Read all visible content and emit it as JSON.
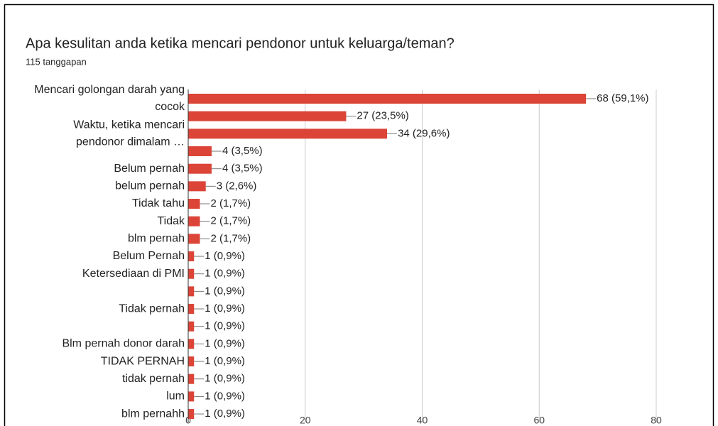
{
  "chart_data": {
    "type": "bar",
    "orientation": "horizontal",
    "title": "Apa kesulitan anda ketika mencari pendonor untuk keluarga/teman?",
    "subtitle": "115 tanggapan",
    "categories": [
      "Mencari golongan darah yang cocok",
      null,
      "Waktu, ketika mencari pendonor dimalam …",
      null,
      "Belum pernah",
      "belum pernah",
      "Tidak tahu",
      "Tidak",
      "blm pernah",
      "Belum Pernah",
      "Ketersediaan di PMI",
      null,
      "Tidak pernah",
      null,
      "Blm pernah donor darah",
      "TIDAK PERNAH",
      "tidak pernah",
      "lum",
      "blm pernahh"
    ],
    "values": [
      68,
      27,
      34,
      4,
      4,
      3,
      2,
      2,
      2,
      1,
      1,
      1,
      1,
      1,
      1,
      1,
      1,
      1,
      1
    ],
    "value_labels": [
      "68 (59,1%)",
      "27 (23,5%)",
      "34 (29,6%)",
      "4 (3,5%)",
      "4 (3,5%)",
      "3 (2,6%)",
      "2 (1,7%)",
      "2 (1,7%)",
      "2 (1,7%)",
      "1 (0,9%)",
      "1 (0,9%)",
      "1 (0,9%)",
      "1 (0,9%)",
      "1 (0,9%)",
      "1 (0,9%)",
      "1 (0,9%)",
      "1 (0,9%)",
      "1 (0,9%)",
      "1 (0,9%)"
    ],
    "color": "#db4437",
    "xlim": [
      0,
      80
    ],
    "xticks": [
      0,
      20,
      40,
      60,
      80
    ],
    "grid": true
  }
}
